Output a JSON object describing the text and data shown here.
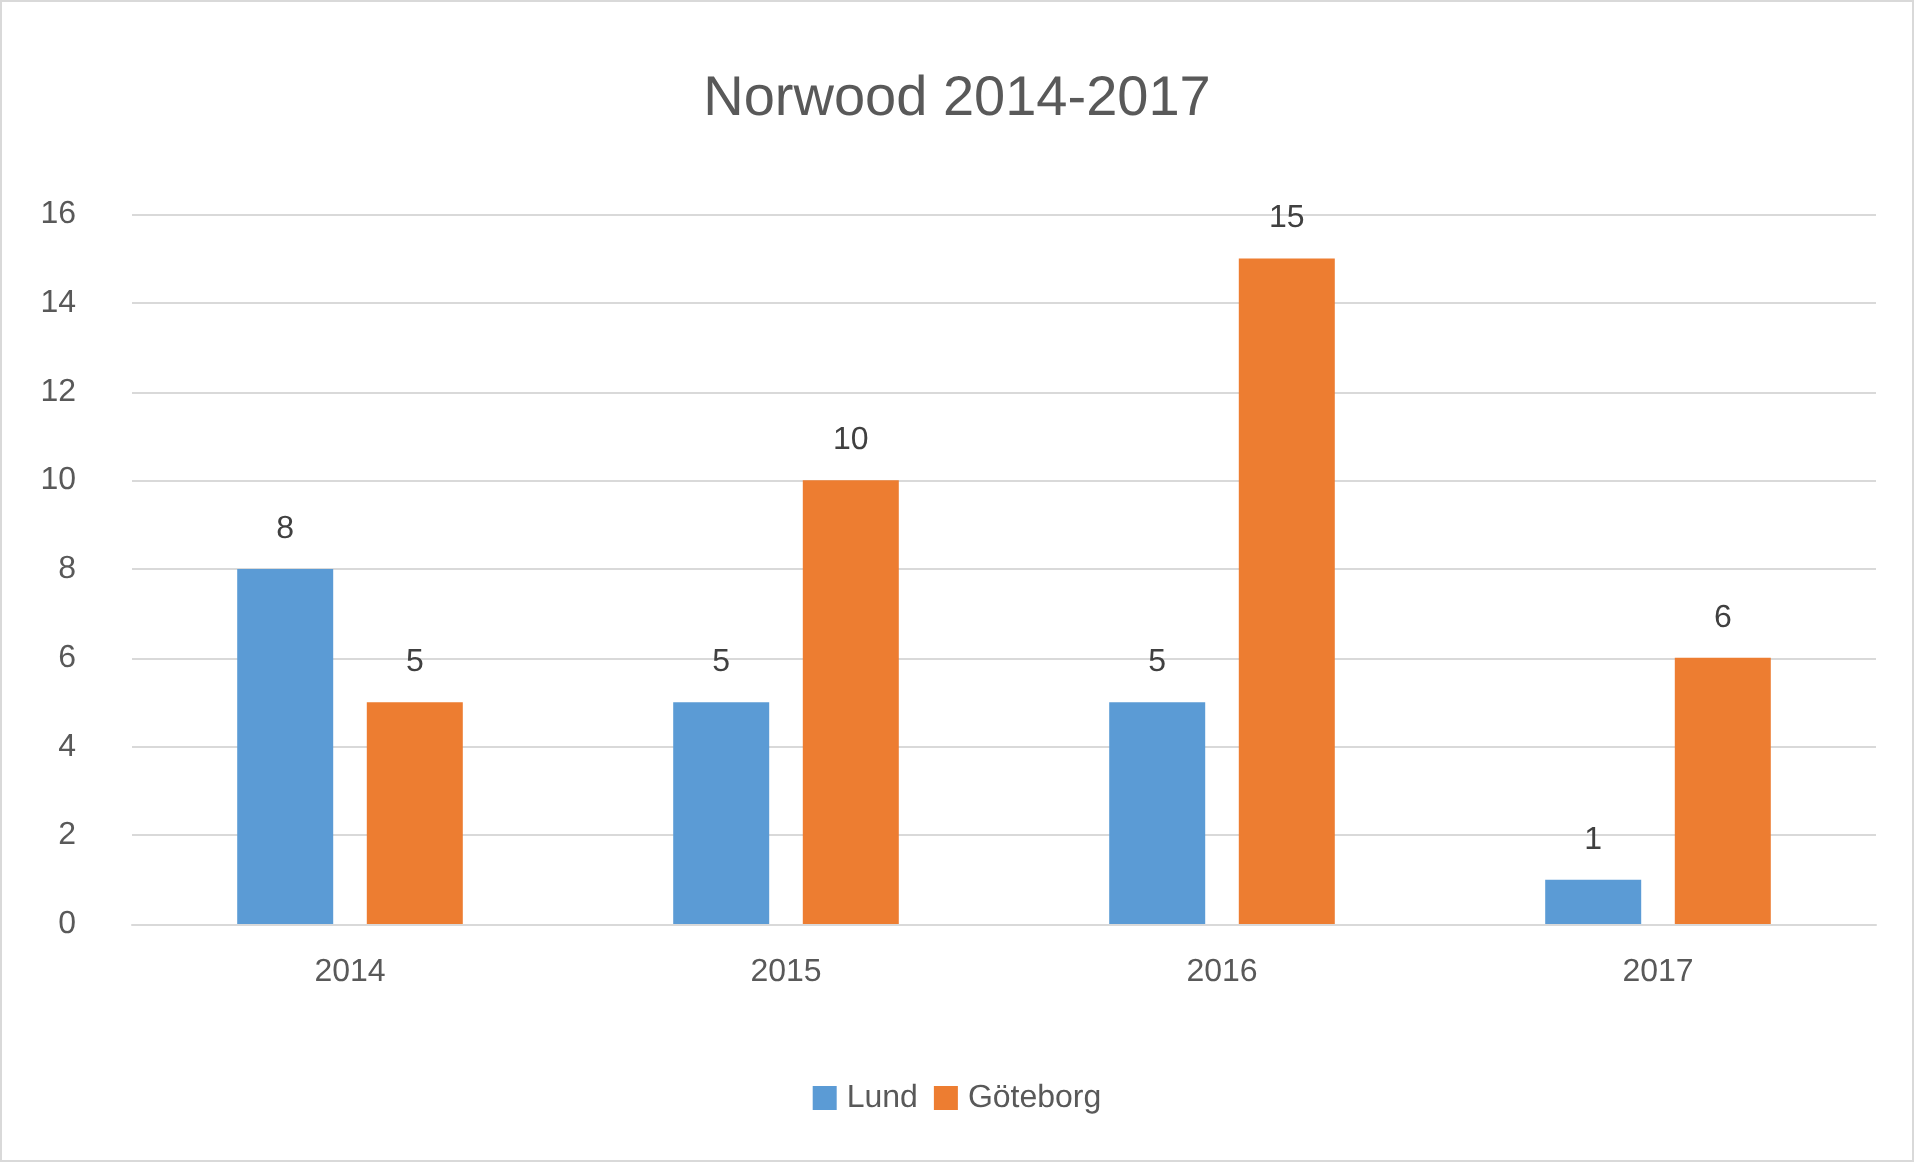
{
  "chart_data": {
    "type": "bar",
    "title": "Norwood 2014-2017",
    "categories": [
      "2014",
      "2015",
      "2016",
      "2017"
    ],
    "series": [
      {
        "name": "Lund",
        "color": "#5b9bd5",
        "values": [
          8,
          5,
          5,
          1
        ]
      },
      {
        "name": "Göteborg",
        "color": "#ed7d31",
        "values": [
          5,
          10,
          15,
          6
        ]
      }
    ],
    "ylim": [
      0,
      16
    ],
    "yticks": [
      0,
      2,
      4,
      6,
      8,
      10,
      12,
      14,
      16
    ],
    "grid": "y",
    "legend": "bottom",
    "data_labels": true
  }
}
